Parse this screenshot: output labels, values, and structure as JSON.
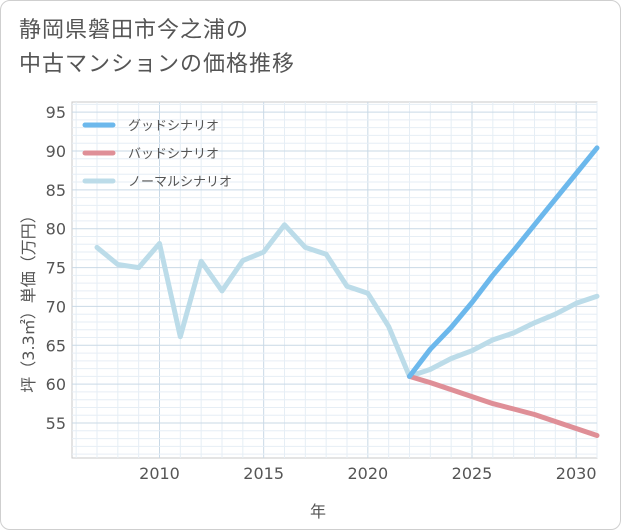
{
  "title_lines": [
    "静岡県磐田市今之浦の",
    "中古マンションの価格推移"
  ],
  "chart_data": {
    "type": "line",
    "xlabel": "年",
    "ylabel": "坪（3.3㎡）単価（万円）",
    "xlim": [
      2005.8,
      2031
    ],
    "ylim": [
      50.5,
      96.3
    ],
    "xticks": [
      2010,
      2015,
      2020,
      2025,
      2030
    ],
    "yticks": [
      55,
      60,
      65,
      70,
      75,
      80,
      85,
      90,
      95
    ],
    "legend_position": "top-left",
    "series": [
      {
        "name": "グッドシナリオ",
        "color": "#6cb8ec",
        "x": [
          2022,
          2023,
          2024,
          2025,
          2026,
          2027,
          2028,
          2029,
          2030,
          2031
        ],
        "values": [
          61.0,
          64.5,
          67.3,
          70.5,
          74.0,
          77.2,
          80.5,
          83.8,
          87.1,
          90.4
        ]
      },
      {
        "name": "バッドシナリオ",
        "color": "#df8f97",
        "x": [
          2022,
          2023,
          2024,
          2025,
          2026,
          2027,
          2028,
          2029,
          2030,
          2031
        ],
        "values": [
          61.0,
          60.2,
          59.3,
          58.4,
          57.5,
          56.8,
          56.1,
          55.2,
          54.3,
          53.4
        ]
      },
      {
        "name": "ノーマルシナリオ",
        "color": "#bcdce9",
        "x": [
          2007,
          2008,
          2009,
          2010,
          2011,
          2012,
          2013,
          2014,
          2015,
          2016,
          2017,
          2018,
          2019,
          2020,
          2021,
          2022,
          2023,
          2024,
          2025,
          2026,
          2027,
          2028,
          2029,
          2030,
          2031
        ],
        "values": [
          77.6,
          75.4,
          75.0,
          78.1,
          66.1,
          75.8,
          72.0,
          75.9,
          77.0,
          80.5,
          77.6,
          76.7,
          72.6,
          71.7,
          67.4,
          61.0,
          61.9,
          63.3,
          64.3,
          65.7,
          66.6,
          67.9,
          69.0,
          70.4,
          71.3
        ]
      }
    ]
  }
}
